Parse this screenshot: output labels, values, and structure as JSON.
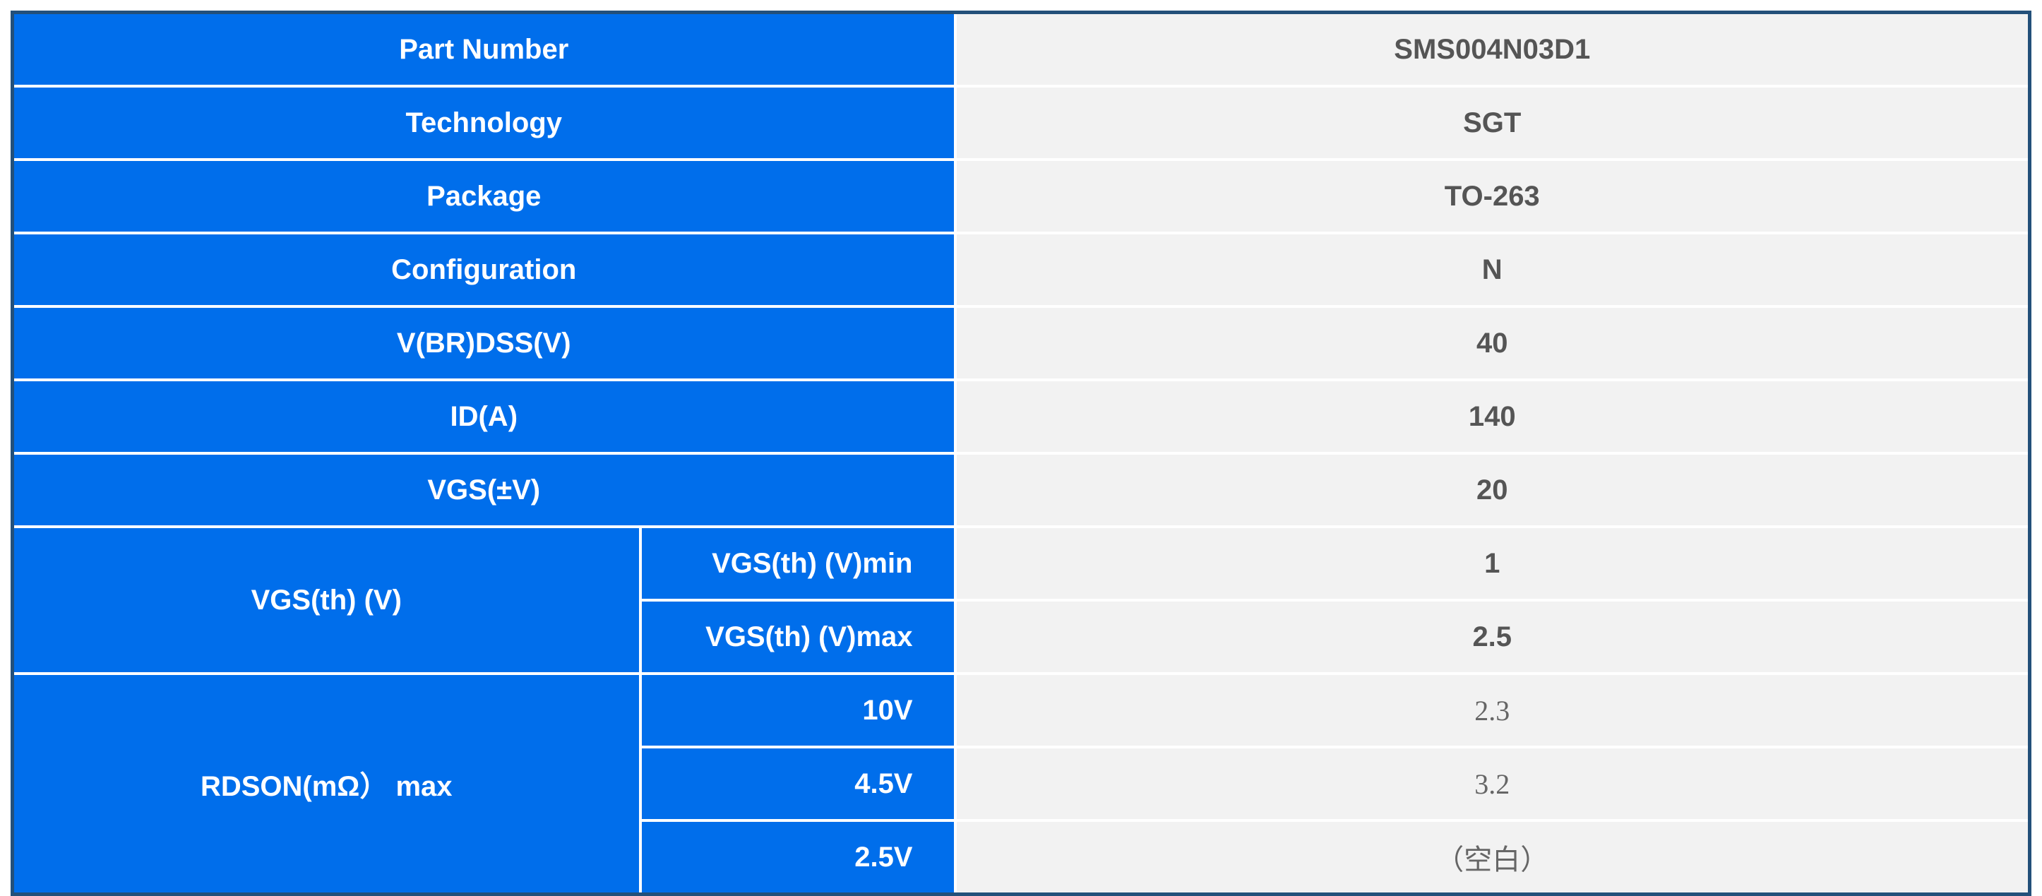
{
  "colors": {
    "label_bg": "#006EEB",
    "value_bg": "#F2F2F2",
    "border": "#23507A"
  },
  "rows": [
    {
      "label": "Part Number",
      "value": "SMS004N03D1"
    },
    {
      "label": "Technology",
      "value": "SGT"
    },
    {
      "label": "Package",
      "value": "TO-263"
    },
    {
      "label": "Configuration",
      "value": "N"
    },
    {
      "label": "V(BR)DSS(V)",
      "value": "40"
    },
    {
      "label": "ID(A)",
      "value": "140"
    },
    {
      "label": "VGS(±V)",
      "value": "20"
    }
  ],
  "vgs_th": {
    "label": "VGS(th) (V)",
    "sub": [
      {
        "label": "VGS(th) (V)min",
        "value": "1"
      },
      {
        "label": "VGS(th) (V)max",
        "value": "2.5"
      }
    ]
  },
  "rdson": {
    "label": "RDSON(mΩ） max",
    "sub": [
      {
        "label": "10V",
        "value": "2.3"
      },
      {
        "label": "4.5V",
        "value": "3.2"
      },
      {
        "label": "2.5V",
        "value": "（空白）"
      }
    ]
  }
}
